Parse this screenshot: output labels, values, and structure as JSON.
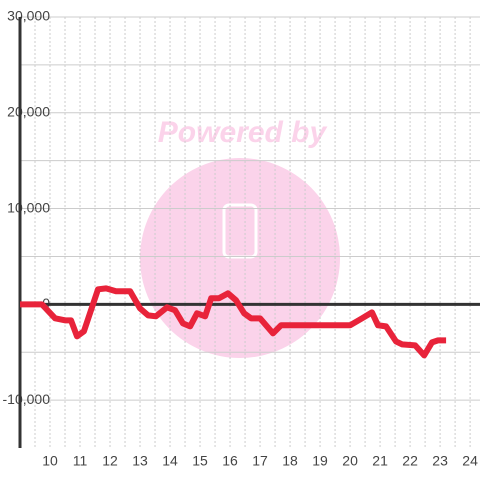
{
  "chart_data": {
    "type": "line",
    "watermark": "Powered by",
    "x": [
      9,
      9.73,
      10.17,
      10.5,
      10.7,
      10.9,
      11.13,
      11.6,
      11.87,
      12.2,
      12.67,
      13,
      13.27,
      13.53,
      13.9,
      14.17,
      14.43,
      14.67,
      14.9,
      15.17,
      15.37,
      15.63,
      15.93,
      16.2,
      16.47,
      16.7,
      17,
      17.43,
      17.7,
      20,
      20.4,
      20.73,
      20.93,
      21.2,
      21.53,
      21.73,
      22.17,
      22.47,
      22.73,
      22.93,
      23.2
    ],
    "values": [
      0,
      0,
      -1460,
      -1670,
      -1670,
      -3340,
      -2820,
      1570,
      1670,
      1360,
      1360,
      -420,
      -1150,
      -1250,
      -310,
      -630,
      -1990,
      -2300,
      -940,
      -1250,
      630,
      630,
      1150,
      420,
      -940,
      -1460,
      -1460,
      -3030,
      -2190,
      -2190,
      -1460,
      -840,
      -2190,
      -2300,
      -3870,
      -4180,
      -4280,
      -5330,
      -3970,
      -3760,
      -3760
    ],
    "color": "#e8233a",
    "xlim": [
      9,
      24.33
    ],
    "xticks": [
      10,
      11,
      12,
      13,
      14,
      15,
      16,
      17,
      18,
      19,
      20,
      21,
      22,
      23,
      24
    ],
    "x_minor_ticks": [
      9.5,
      10.5,
      11.5,
      12.5,
      13.5,
      14.5,
      15.5,
      16.5,
      17.5,
      18.5,
      19.5,
      20.5,
      21.5,
      22.5,
      23.5
    ],
    "ylim": [
      -15000,
      30000
    ],
    "yticks": [
      {
        "value": -10000,
        "label": "-10,000"
      },
      0,
      {
        "value": 10000,
        "label": "10,000"
      },
      {
        "value": 20000,
        "label": "20,000"
      },
      {
        "value": 30000,
        "label": "30,000"
      }
    ],
    "y_minor_ticks": [
      -5000,
      5000,
      15000,
      25000
    ],
    "grid": true
  }
}
